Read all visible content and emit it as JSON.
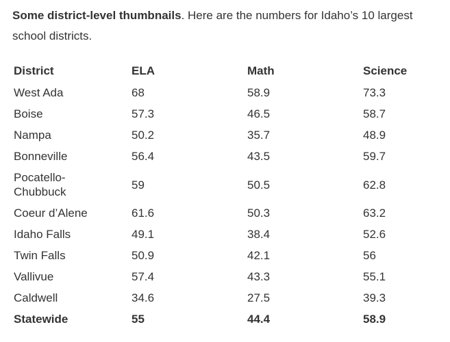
{
  "intro": {
    "bold": "Some district-level thumbnails",
    "rest": ". Here are the numbers for Idaho’s 10 largest school districts."
  },
  "table": {
    "headers": [
      "District",
      "ELA",
      "Math",
      "Science"
    ],
    "rows": [
      {
        "district": "West Ada",
        "ela": "68",
        "math": "58.9",
        "science": "73.3"
      },
      {
        "district": "Boise",
        "ela": "57.3",
        "math": "46.5",
        "science": "58.7"
      },
      {
        "district": "Nampa",
        "ela": "50.2",
        "math": "35.7",
        "science": "48.9"
      },
      {
        "district": "Bonneville",
        "ela": "56.4",
        "math": "43.5",
        "science": "59.7"
      },
      {
        "district": "Pocatello-\nChubbuck",
        "ela": "59",
        "math": "50.5",
        "science": "62.8"
      },
      {
        "district": "Coeur d’Alene",
        "ela": "61.6",
        "math": "50.3",
        "science": "63.2"
      },
      {
        "district": "Idaho Falls",
        "ela": "49.1",
        "math": "38.4",
        "science": "52.6"
      },
      {
        "district": "Twin Falls",
        "ela": "50.9",
        "math": "42.1",
        "science": "56"
      },
      {
        "district": "Vallivue",
        "ela": "57.4",
        "math": "43.3",
        "science": "55.1"
      },
      {
        "district": "Caldwell",
        "ela": "34.6",
        "math": "27.5",
        "science": "39.3"
      },
      {
        "district": "Statewide",
        "ela": "55",
        "math": "44.4",
        "science": "58.9"
      }
    ]
  }
}
